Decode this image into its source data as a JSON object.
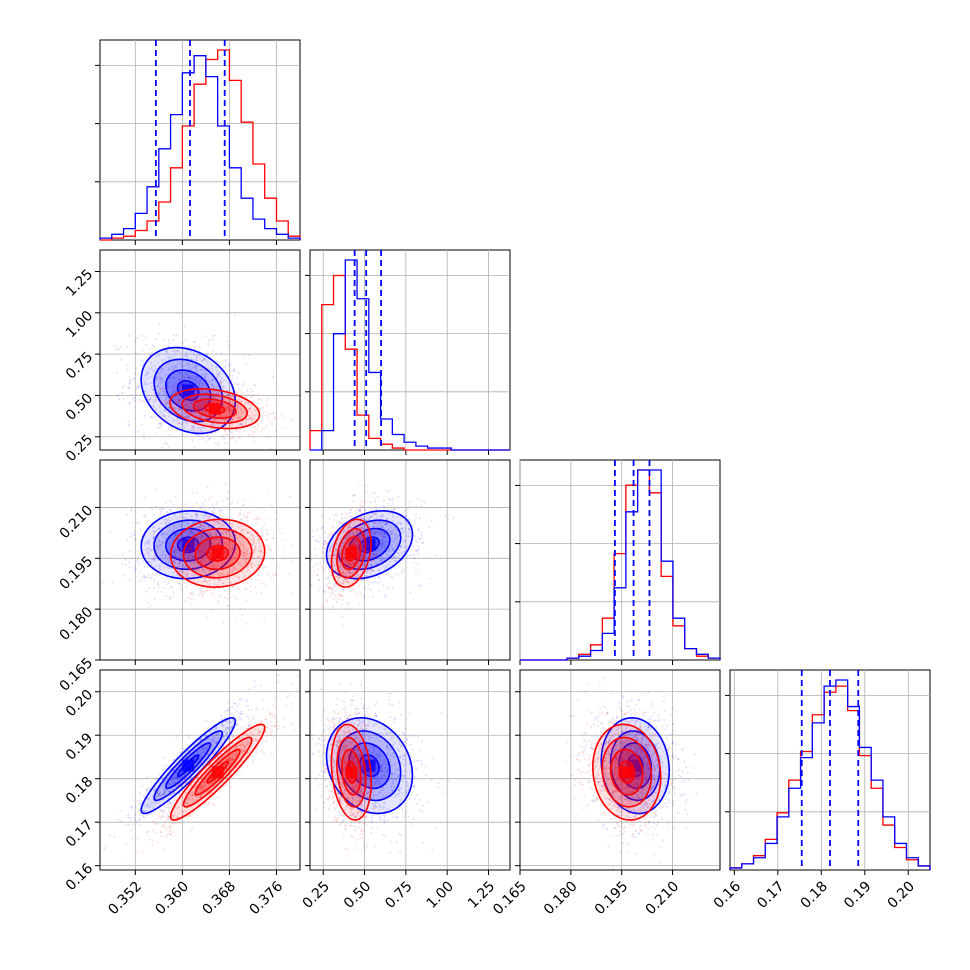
{
  "chart_data": {
    "type": "corner-plot",
    "grid": true,
    "series_colors": {
      "blue": "#0000ff",
      "red": "#ff0000"
    },
    "parameters": [
      {
        "range": [
          0.346,
          0.38
        ],
        "ticks": [
          "0.352",
          "0.360",
          "0.368",
          "0.376"
        ],
        "tick_values": [
          0.352,
          0.36,
          0.368,
          0.376
        ],
        "label": ""
      },
      {
        "range": [
          0.17,
          1.38
        ],
        "ticks": [
          "0.25",
          "0.50",
          "0.75",
          "1.00",
          "1.25"
        ],
        "tick_values": [
          0.25,
          0.5,
          0.75,
          1.0,
          1.25
        ],
        "label": ""
      },
      {
        "range": [
          0.165,
          0.224
        ],
        "ticks": [
          "0.165",
          "0.180",
          "0.195",
          "0.210"
        ],
        "tick_values": [
          0.165,
          0.18,
          0.195,
          0.21
        ],
        "label": ""
      },
      {
        "range": [
          0.159,
          0.205
        ],
        "ticks": [
          "0.16",
          "0.17",
          "0.18",
          "0.19",
          "0.20"
        ],
        "tick_values": [
          0.16,
          0.17,
          0.18,
          0.19,
          0.2
        ],
        "label": ""
      }
    ],
    "histograms": [
      {
        "blue_counts": [
          1,
          3,
          6,
          14,
          28,
          48,
          66,
          88,
          97,
          86,
          60,
          38,
          22,
          11,
          6,
          3,
          1
        ],
        "red_counts": [
          0,
          1,
          2,
          5,
          10,
          20,
          38,
          60,
          82,
          95,
          100,
          84,
          62,
          40,
          22,
          10,
          2
        ],
        "quantiles": [
          0.3555,
          0.3613,
          0.3672
        ]
      },
      {
        "blue_counts": [
          0,
          10,
          60,
          98,
          78,
          40,
          16,
          8,
          4,
          2,
          1,
          1,
          0,
          0,
          0,
          0,
          0
        ],
        "red_counts": [
          10,
          75,
          90,
          52,
          18,
          6,
          3,
          1,
          0,
          0,
          0,
          0,
          0,
          0,
          0,
          0,
          0
        ],
        "quantiles": [
          0.44,
          0.51,
          0.6
        ]
      },
      {
        "blue_counts": [
          0,
          0,
          0,
          0,
          1,
          2,
          5,
          14,
          38,
          78,
          100,
          100,
          52,
          22,
          6,
          3,
          1
        ],
        "red_counts": [
          0,
          0,
          0,
          0,
          1,
          3,
          8,
          22,
          56,
          92,
          100,
          88,
          44,
          18,
          6,
          2,
          1
        ],
        "quantiles": [
          0.193,
          0.1985,
          0.2032
        ]
      },
      {
        "blue_counts": [
          1,
          3,
          6,
          13,
          26,
          40,
          55,
          72,
          90,
          93,
          80,
          60,
          44,
          26,
          13,
          6,
          2
        ],
        "red_counts": [
          1,
          3,
          7,
          15,
          28,
          44,
          58,
          76,
          87,
          90,
          78,
          56,
          40,
          22,
          11,
          5,
          2
        ],
        "quantiles": [
          0.1755,
          0.182,
          0.1885
        ]
      }
    ],
    "scatter_panels": [
      {
        "row": 1,
        "col": 0,
        "blue": {
          "mean": [
            0.361,
            0.53
          ],
          "sd": [
            0.004,
            0.13
          ],
          "corr": -0.25
        },
        "red": {
          "mean": [
            0.3655,
            0.42
          ],
          "sd": [
            0.0038,
            0.06
          ],
          "corr": -0.3
        }
      },
      {
        "row": 2,
        "col": 0,
        "blue": {
          "mean": [
            0.361,
            0.199
          ],
          "sd": [
            0.004,
            0.005
          ],
          "corr": 0.05
        },
        "red": {
          "mean": [
            0.366,
            0.1965
          ],
          "sd": [
            0.004,
            0.005
          ],
          "corr": 0.05
        }
      },
      {
        "row": 2,
        "col": 1,
        "blue": {
          "mean": [
            0.53,
            0.199
          ],
          "sd": [
            0.13,
            0.005
          ],
          "corr": 0.3
        },
        "red": {
          "mean": [
            0.42,
            0.1965
          ],
          "sd": [
            0.06,
            0.005
          ],
          "corr": 0.3
        }
      },
      {
        "row": 3,
        "col": 0,
        "blue": {
          "mean": [
            0.361,
            0.183
          ],
          "sd": [
            0.004,
            0.0055
          ],
          "corr": 0.93
        },
        "red": {
          "mean": [
            0.366,
            0.1815
          ],
          "sd": [
            0.004,
            0.0055
          ],
          "corr": 0.93
        }
      },
      {
        "row": 3,
        "col": 1,
        "blue": {
          "mean": [
            0.53,
            0.183
          ],
          "sd": [
            0.13,
            0.0055
          ],
          "corr": -0.2
        },
        "red": {
          "mean": [
            0.42,
            0.1815
          ],
          "sd": [
            0.06,
            0.0055
          ],
          "corr": -0.2
        }
      },
      {
        "row": 3,
        "col": 2,
        "blue": {
          "mean": [
            0.199,
            0.183
          ],
          "sd": [
            0.005,
            0.0055
          ],
          "corr": -0.1
        },
        "red": {
          "mean": [
            0.1965,
            0.1815
          ],
          "sd": [
            0.005,
            0.0055
          ],
          "corr": -0.1
        }
      }
    ]
  }
}
